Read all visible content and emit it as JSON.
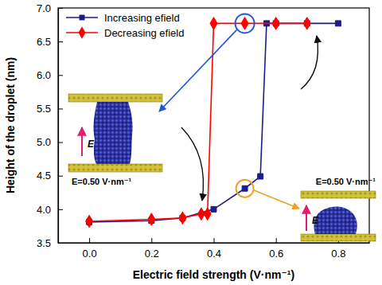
{
  "chart_data": {
    "type": "line",
    "xlabel": "Electric field strength (V·nm⁻¹)",
    "ylabel": "Height of the droplet (nm)",
    "xlim": [
      -0.1,
      0.9
    ],
    "ylim": [
      3.5,
      7.0
    ],
    "xticks": [
      {
        "value": 0,
        "label": "0.0"
      },
      {
        "value": 0.2,
        "label": "0.2"
      },
      {
        "value": 0.4,
        "label": "0.4"
      },
      {
        "value": 0.6,
        "label": "0.6"
      },
      {
        "value": 0.8,
        "label": "0.8"
      }
    ],
    "yticks": [
      3.5,
      {
        "value": 4,
        "label": "4.0"
      },
      4.5,
      {
        "value": 5,
        "label": "5.0"
      },
      5.5,
      {
        "value": 6,
        "label": "6.0"
      },
      6.5,
      {
        "value": 7,
        "label": "7.0"
      }
    ],
    "legend": "upper left",
    "series": [
      {
        "name": "Increasing efield",
        "color": "#1c1c8a",
        "marker": "square",
        "x": [
          0,
          0.2,
          0.3,
          0.4,
          0.5,
          0.55,
          0.57,
          0.6,
          0.7,
          0.8
        ],
        "values": [
          3.81,
          3.83,
          3.87,
          4.0,
          4.31,
          4.49,
          6.77,
          6.77,
          6.77,
          6.77
        ]
      },
      {
        "name": "Decreasing efield",
        "color": "#ff0000",
        "marker": "diamond",
        "x": [
          0,
          0.2,
          0.3,
          0.36,
          0.38,
          0.4,
          0.5,
          0.6,
          0.7
        ],
        "values": [
          3.82,
          3.85,
          3.87,
          3.93,
          3.93,
          6.77,
          6.77,
          6.77,
          6.77
        ]
      }
    ],
    "annotations": [
      {
        "text": "E"
      },
      {
        "text": "E=0.50 V·nm⁻¹"
      },
      {
        "text": "E"
      },
      {
        "text": "E=0.50 V·nm⁻¹"
      }
    ]
  }
}
